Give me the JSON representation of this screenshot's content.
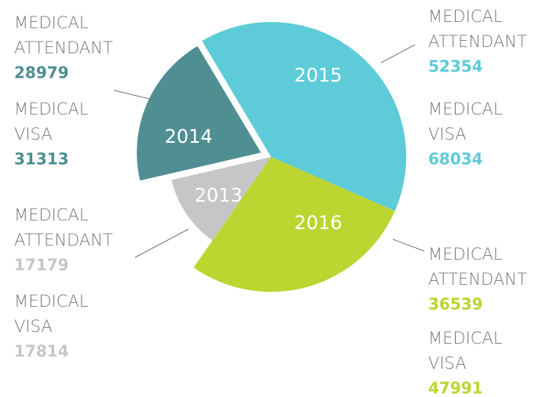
{
  "chart_data": {
    "type": "pie",
    "categories": [
      "2013",
      "2014",
      "2015",
      "2016"
    ],
    "colors": [
      "#c6c6c6",
      "#4f8f92",
      "#5ecbd8",
      "#bcd531"
    ],
    "series": [
      {
        "name": "MEDICAL ATTENDANT",
        "values": [
          17179,
          28979,
          52354,
          36539
        ]
      },
      {
        "name": "MEDICAL VISA",
        "values": [
          17814,
          31313,
          68034,
          47991
        ]
      }
    ]
  }
}
